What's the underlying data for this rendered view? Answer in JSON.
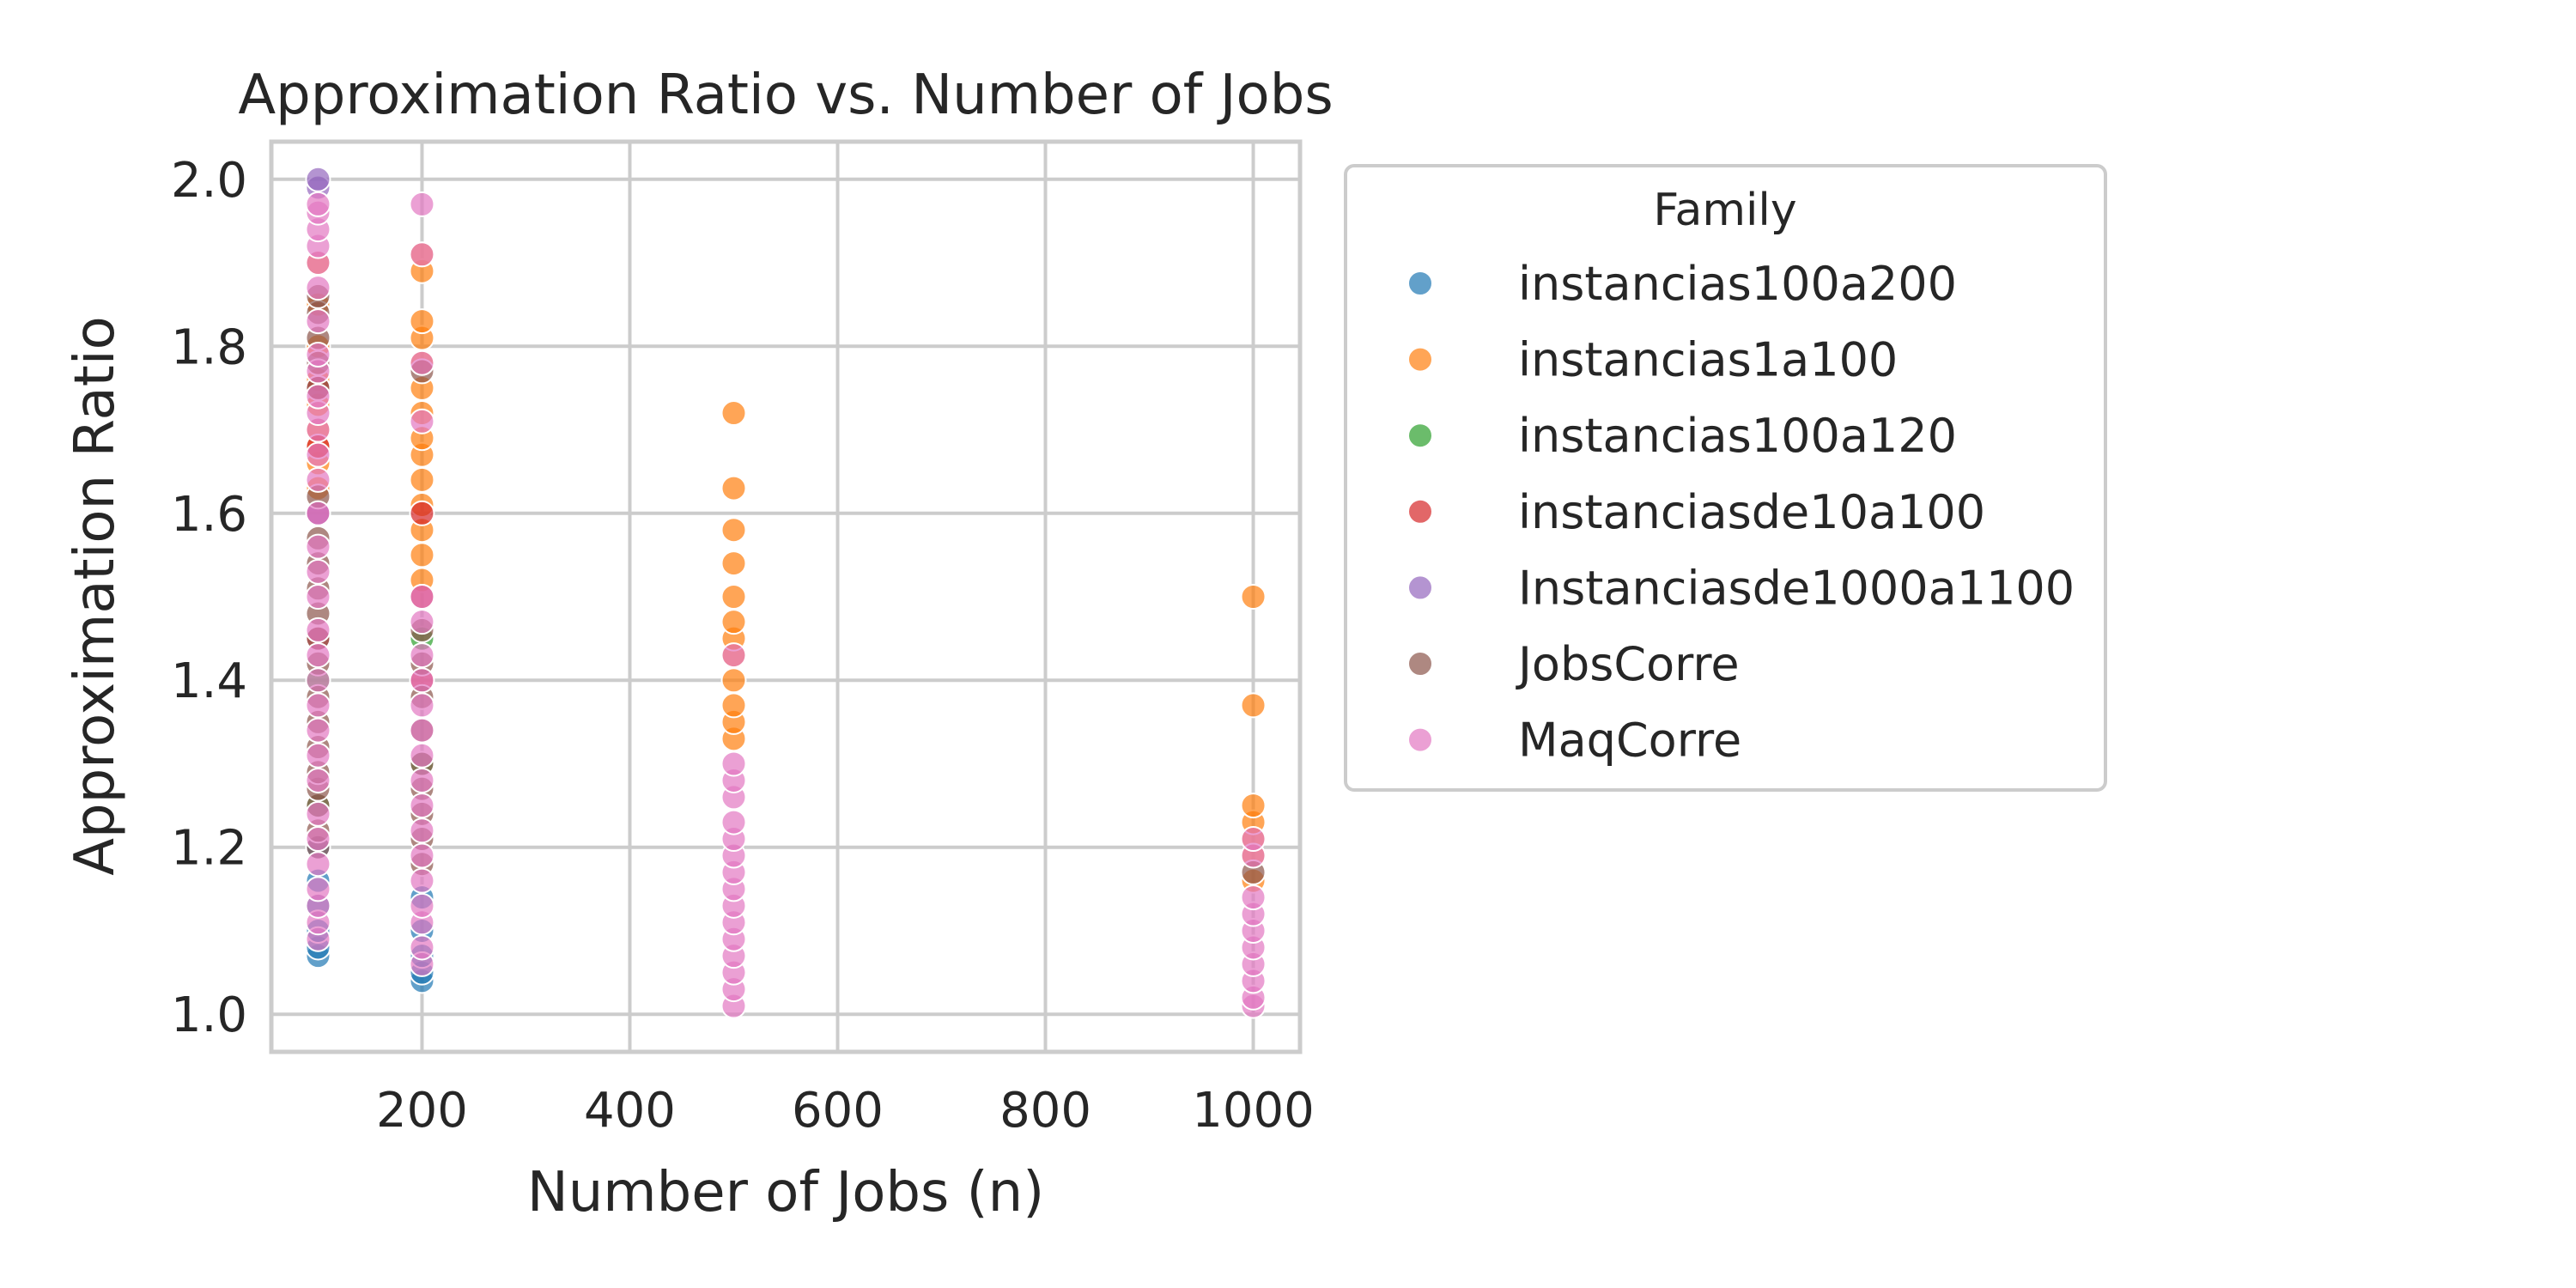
{
  "chart_data": {
    "type": "scatter",
    "title": "Approximation Ratio vs. Number of Jobs",
    "xlabel": "Number of Jobs (n)",
    "ylabel": "Approximation Ratio",
    "xlim": [
      55,
      1045
    ],
    "ylim": [
      0.955,
      2.045
    ],
    "x_ticks": [
      200,
      400,
      600,
      800,
      1000
    ],
    "y_ticks": [
      1.0,
      1.2,
      1.4,
      1.6,
      1.8,
      2.0
    ],
    "x_tick_labels": [
      "200",
      "400",
      "600",
      "800",
      "1000"
    ],
    "y_tick_labels": [
      "1.0",
      "1.2",
      "1.4",
      "1.6",
      "1.8",
      "2.0"
    ],
    "grid": true,
    "legend": {
      "title": "Family",
      "placement": "outside-right"
    },
    "series": [
      {
        "name": "instancias100a200",
        "color": "#1f77b4",
        "points": [
          [
            100,
            1.07
          ],
          [
            100,
            1.08
          ],
          [
            100,
            1.1
          ],
          [
            100,
            1.13
          ],
          [
            100,
            1.16
          ],
          [
            100,
            1.2
          ],
          [
            200,
            1.04
          ],
          [
            200,
            1.05
          ],
          [
            200,
            1.07
          ],
          [
            200,
            1.1
          ],
          [
            200,
            1.14
          ]
        ]
      },
      {
        "name": "instancias1a100",
        "color": "#ff7f0e",
        "points": [
          [
            100,
            1.63
          ],
          [
            100,
            1.66
          ],
          [
            100,
            1.68
          ],
          [
            100,
            1.7
          ],
          [
            100,
            1.73
          ],
          [
            100,
            1.76
          ],
          [
            100,
            1.8
          ],
          [
            100,
            1.85
          ],
          [
            100,
            1.9
          ],
          [
            200,
            1.52
          ],
          [
            200,
            1.55
          ],
          [
            200,
            1.58
          ],
          [
            200,
            1.61
          ],
          [
            200,
            1.64
          ],
          [
            200,
            1.67
          ],
          [
            200,
            1.69
          ],
          [
            200,
            1.72
          ],
          [
            200,
            1.75
          ],
          [
            200,
            1.78
          ],
          [
            200,
            1.81
          ],
          [
            200,
            1.83
          ],
          [
            200,
            1.89
          ],
          [
            200,
            1.91
          ],
          [
            500,
            1.33
          ],
          [
            500,
            1.35
          ],
          [
            500,
            1.37
          ],
          [
            500,
            1.4
          ],
          [
            500,
            1.43
          ],
          [
            500,
            1.45
          ],
          [
            500,
            1.47
          ],
          [
            500,
            1.5
          ],
          [
            500,
            1.54
          ],
          [
            500,
            1.58
          ],
          [
            500,
            1.63
          ],
          [
            500,
            1.72
          ],
          [
            1000,
            1.16
          ],
          [
            1000,
            1.19
          ],
          [
            1000,
            1.21
          ],
          [
            1000,
            1.23
          ],
          [
            1000,
            1.25
          ],
          [
            1000,
            1.37
          ],
          [
            1000,
            1.5
          ]
        ]
      },
      {
        "name": "instancias100a120",
        "color": "#2ca02c",
        "points": [
          [
            100,
            1.25
          ],
          [
            100,
            1.4
          ],
          [
            200,
            1.3
          ],
          [
            200,
            1.45
          ]
        ]
      },
      {
        "name": "instanciasde10a100",
        "color": "#d62728",
        "points": [
          [
            100,
            1.45
          ],
          [
            100,
            1.6
          ],
          [
            100,
            1.68
          ],
          [
            100,
            1.75
          ],
          [
            200,
            1.4
          ],
          [
            200,
            1.5
          ],
          [
            200,
            1.6
          ]
        ]
      },
      {
        "name": "Instanciasde1000a1100",
        "color": "#9467bd",
        "points": [
          [
            100,
            1.6
          ],
          [
            100,
            1.99
          ],
          [
            100,
            2.0
          ]
        ]
      },
      {
        "name": "JobsCorre",
        "color": "#8c564b",
        "points": [
          [
            100,
            1.2
          ],
          [
            100,
            1.22
          ],
          [
            100,
            1.25
          ],
          [
            100,
            1.27
          ],
          [
            100,
            1.29
          ],
          [
            100,
            1.32
          ],
          [
            100,
            1.35
          ],
          [
            100,
            1.38
          ],
          [
            100,
            1.42
          ],
          [
            100,
            1.45
          ],
          [
            100,
            1.48
          ],
          [
            100,
            1.51
          ],
          [
            100,
            1.54
          ],
          [
            100,
            1.57
          ],
          [
            100,
            1.62
          ],
          [
            100,
            1.75
          ],
          [
            100,
            1.78
          ],
          [
            100,
            1.81
          ],
          [
            100,
            1.84
          ],
          [
            100,
            1.86
          ],
          [
            200,
            1.18
          ],
          [
            200,
            1.21
          ],
          [
            200,
            1.24
          ],
          [
            200,
            1.27
          ],
          [
            200,
            1.3
          ],
          [
            200,
            1.34
          ],
          [
            200,
            1.38
          ],
          [
            200,
            1.42
          ],
          [
            200,
            1.46
          ],
          [
            200,
            1.77
          ],
          [
            1000,
            1.17
          ]
        ]
      },
      {
        "name": "MaqCorre",
        "color": "#e377c2",
        "points": [
          [
            100,
            1.09
          ],
          [
            100,
            1.11
          ],
          [
            100,
            1.13
          ],
          [
            100,
            1.15
          ],
          [
            100,
            1.18
          ],
          [
            100,
            1.21
          ],
          [
            100,
            1.24
          ],
          [
            100,
            1.28
          ],
          [
            100,
            1.31
          ],
          [
            100,
            1.34
          ],
          [
            100,
            1.37
          ],
          [
            100,
            1.4
          ],
          [
            100,
            1.43
          ],
          [
            100,
            1.46
          ],
          [
            100,
            1.5
          ],
          [
            100,
            1.53
          ],
          [
            100,
            1.56
          ],
          [
            100,
            1.6
          ],
          [
            100,
            1.64
          ],
          [
            100,
            1.67
          ],
          [
            100,
            1.7
          ],
          [
            100,
            1.72
          ],
          [
            100,
            1.74
          ],
          [
            100,
            1.77
          ],
          [
            100,
            1.79
          ],
          [
            100,
            1.83
          ],
          [
            100,
            1.87
          ],
          [
            100,
            1.9
          ],
          [
            100,
            1.92
          ],
          [
            100,
            1.94
          ],
          [
            100,
            1.96
          ],
          [
            100,
            1.97
          ],
          [
            200,
            1.06
          ],
          [
            200,
            1.08
          ],
          [
            200,
            1.11
          ],
          [
            200,
            1.13
          ],
          [
            200,
            1.16
          ],
          [
            200,
            1.19
          ],
          [
            200,
            1.22
          ],
          [
            200,
            1.25
          ],
          [
            200,
            1.28
          ],
          [
            200,
            1.31
          ],
          [
            200,
            1.34
          ],
          [
            200,
            1.37
          ],
          [
            200,
            1.4
          ],
          [
            200,
            1.43
          ],
          [
            200,
            1.47
          ],
          [
            200,
            1.5
          ],
          [
            200,
            1.71
          ],
          [
            200,
            1.78
          ],
          [
            200,
            1.91
          ],
          [
            200,
            1.97
          ],
          [
            500,
            1.01
          ],
          [
            500,
            1.03
          ],
          [
            500,
            1.05
          ],
          [
            500,
            1.07
          ],
          [
            500,
            1.09
          ],
          [
            500,
            1.11
          ],
          [
            500,
            1.13
          ],
          [
            500,
            1.15
          ],
          [
            500,
            1.17
          ],
          [
            500,
            1.19
          ],
          [
            500,
            1.21
          ],
          [
            500,
            1.23
          ],
          [
            500,
            1.26
          ],
          [
            500,
            1.28
          ],
          [
            500,
            1.3
          ],
          [
            500,
            1.43
          ],
          [
            1000,
            1.01
          ],
          [
            1000,
            1.02
          ],
          [
            1000,
            1.04
          ],
          [
            1000,
            1.06
          ],
          [
            1000,
            1.08
          ],
          [
            1000,
            1.1
          ],
          [
            1000,
            1.12
          ],
          [
            1000,
            1.14
          ],
          [
            1000,
            1.19
          ],
          [
            1000,
            1.21
          ]
        ]
      }
    ]
  }
}
